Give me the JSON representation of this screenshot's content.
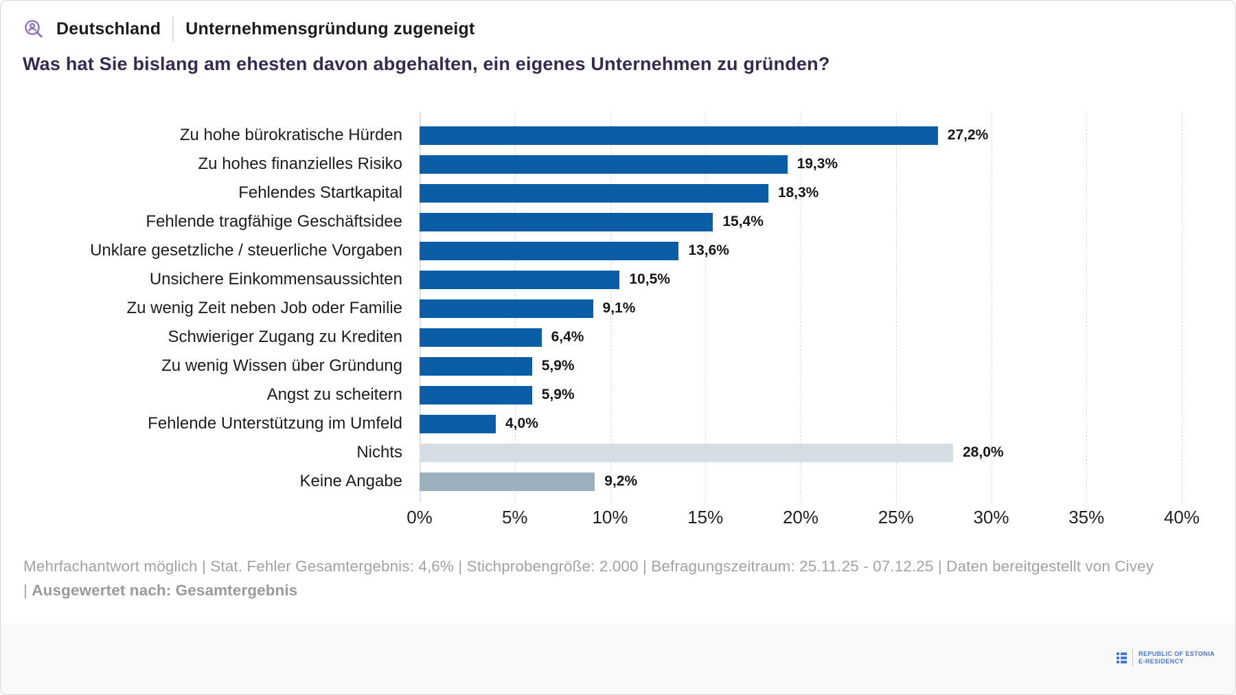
{
  "header": {
    "region": "Deutschland",
    "segment": "Unternehmensgründung zugeneigt",
    "icon": "person-search-icon",
    "icon_color": "#8a6cc0"
  },
  "title": "Was hat Sie bislang am ehesten davon abgehalten, ein eigenes Unternehmen zu gründen?",
  "chart_data": {
    "type": "bar",
    "orientation": "horizontal",
    "title": "Was hat Sie bislang am ehesten davon abgehalten, ein eigenes Unternehmen zu gründen?",
    "categories": [
      "Zu hohe bürokratische Hürden",
      "Zu hohes finanzielles Risiko",
      "Fehlendes Startkapital",
      "Fehlende tragfähige Geschäftsidee",
      "Unklare gesetzliche / steuerliche Vorgaben",
      "Unsichere Einkommensaussichten",
      "Zu wenig Zeit neben Job oder Familie",
      "Schwieriger Zugang zu Krediten",
      "Zu wenig Wissen über Gründung",
      "Angst zu scheitern",
      "Fehlende Unterstützung im Umfeld",
      "Nichts",
      "Keine Angabe"
    ],
    "values": [
      27.2,
      19.3,
      18.3,
      15.4,
      13.6,
      10.5,
      9.1,
      6.4,
      5.9,
      5.9,
      4.0,
      28.0,
      9.2
    ],
    "display_values": [
      "27,2%",
      "19,3%",
      "18,3%",
      "15,4%",
      "13,6%",
      "10,5%",
      "9,1%",
      "6,4%",
      "5,9%",
      "5,9%",
      "4,0%",
      "28,0%",
      "9,2%"
    ],
    "bar_colors": [
      "#0b5da6",
      "#0b5da6",
      "#0b5da6",
      "#0b5da6",
      "#0b5da6",
      "#0b5da6",
      "#0b5da6",
      "#0b5da6",
      "#0b5da6",
      "#0b5da6",
      "#0b5da6",
      "#d6dde4",
      "#9db0be"
    ],
    "x_tick_labels": [
      "0%",
      "5%",
      "10%",
      "15%",
      "20%",
      "25%",
      "30%",
      "35%",
      "40%"
    ],
    "xlim": [
      0,
      40
    ],
    "grid": "vertical dashed gridlines every 5%",
    "legend": "none",
    "xlabel": "",
    "ylabel": ""
  },
  "footer": {
    "line1": "Mehrfachantwort möglich | Stat. Fehler Gesamtergebnis: 4,6% | Stichprobengröße: 2.000 | Befragungszeitraum: 25.11.25 - 07.12.25 | Daten bereitgestellt von Civey",
    "line2_prefix": " | ",
    "line2_bold": "Ausgewertet nach: Gesamtergebnis"
  },
  "branding": {
    "logo": "estonia-e-residency-logo",
    "line1": "REPUBLIC OF ESTONIA",
    "line2": "E-RESIDENCY",
    "color": "#4577d6"
  },
  "colors": {
    "bar_blue": "#0b5da6",
    "bar_light_gray": "#d6dde4",
    "bar_medium_gray": "#9db0be",
    "title_purple": "#362a51",
    "footnote_gray": "#a2a2a2",
    "bottom_strip_bg": "#f9f9fa"
  }
}
